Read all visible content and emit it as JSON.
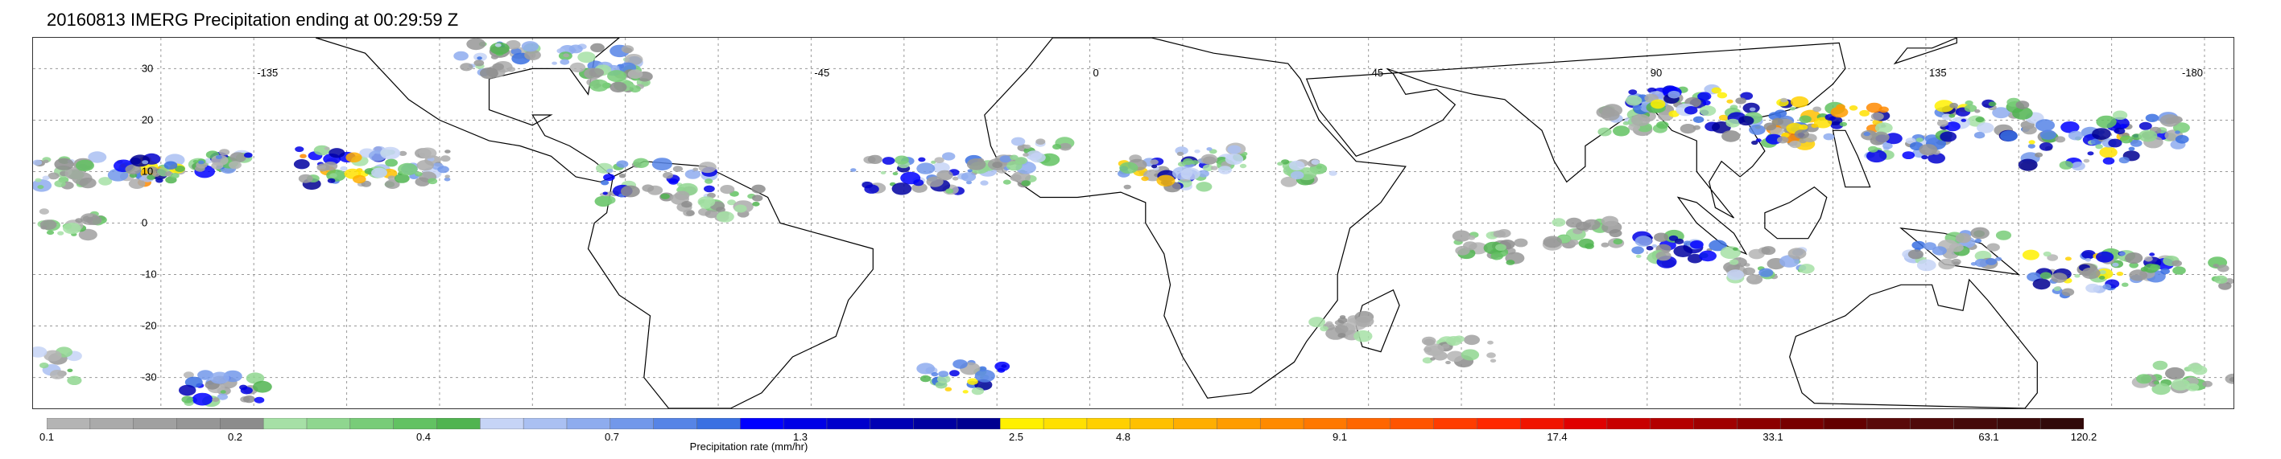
{
  "title": "20160813 IMERG Precipitation ending at 00:29:59 Z",
  "map": {
    "lon_ticks": [
      "-135",
      "-45",
      "0",
      "45",
      "90",
      "135",
      "-180"
    ],
    "lat_ticks": [
      "30",
      "20",
      "10",
      "0",
      "-10",
      "-20",
      "-30"
    ],
    "lon_values": [
      -135,
      -45,
      0,
      45,
      90,
      135,
      180
    ],
    "lat_values": [
      30,
      20,
      10,
      0,
      -10,
      -20,
      -30
    ],
    "grid": true,
    "coastline_color": "#000000"
  },
  "colorbar": {
    "title": "Precipitation rate (mm/hr)",
    "labels": [
      "0.1",
      "0.2",
      "0.4",
      "0.7",
      "1.3",
      "2.5",
      "4.8",
      "9.1",
      "17.4",
      "33.1",
      "63.1",
      "120.2"
    ],
    "colors": [
      "#b4b4b4",
      "#aaaaaa",
      "#a0a0a0",
      "#969696",
      "#8c8c8c",
      "#a6e0a6",
      "#8fd68f",
      "#78cc78",
      "#62c262",
      "#50b450",
      "#c6d4f6",
      "#aac0f2",
      "#8eacee",
      "#7298ea",
      "#5684e6",
      "#3a70e2",
      "#0000ff",
      "#0000e6",
      "#0000cc",
      "#0000b4",
      "#0000a0",
      "#000090",
      "#fff000",
      "#ffe000",
      "#ffd000",
      "#ffc000",
      "#ffae00",
      "#ff9c00",
      "#ff8a00",
      "#ff7800",
      "#ff6600",
      "#ff5400",
      "#ff3c00",
      "#ff2800",
      "#f01400",
      "#e00000",
      "#c80000",
      "#b40000",
      "#a00000",
      "#8c0000",
      "#780000",
      "#640000",
      "#5a0a0a",
      "#500a0a",
      "#460a0a",
      "#3c0a0a",
      "#320a0a"
    ]
  }
}
